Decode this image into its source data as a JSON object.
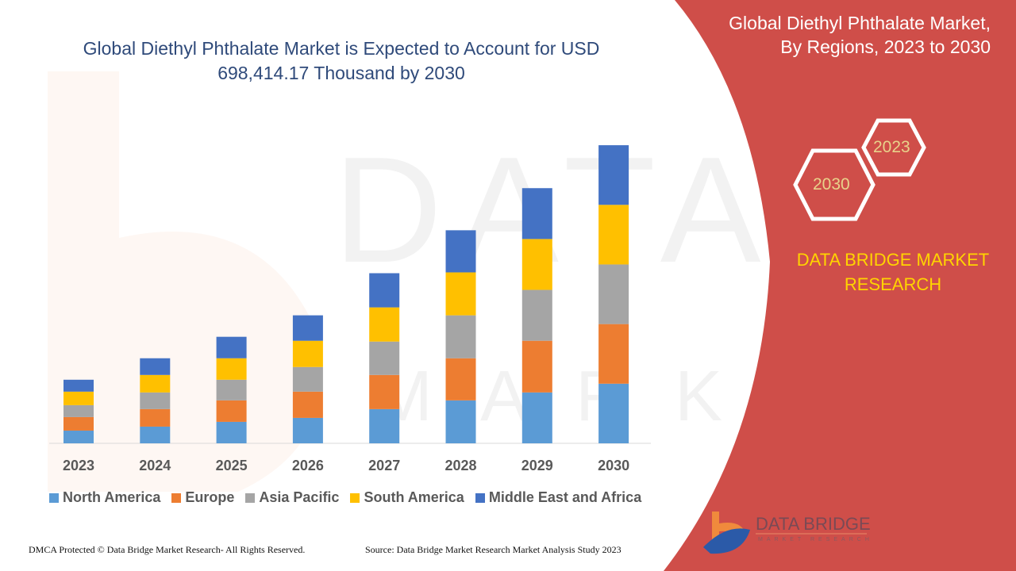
{
  "title": "Global Diethyl Phthalate Market is Expected to Account for USD 698,414.17 Thousand by 2030",
  "side_panel": {
    "title": "Global Diethyl Phthalate Market, By Regions, 2023 to 2030",
    "hex_labels": [
      "2023",
      "2030"
    ],
    "brand": "DATA BRIDGE MARKET RESEARCH",
    "logo_text": "DATA BRIDGE",
    "logo_subtext": "MARKET RESEARCH"
  },
  "footer": {
    "left": "DMCA Protected © Data Bridge Market Research- All Rights Reserved.",
    "right": "Source: Data Bridge Market Research Market Analysis Study 2023"
  },
  "colors": {
    "panel": "#cf4e49",
    "title": "#2f4a7a",
    "brand": "#ffd400"
  },
  "chart_data": {
    "type": "bar",
    "stacked": true,
    "title": "Global Diethyl Phthalate Market is Expected to Account for USD 698,414.17 Thousand by 2030",
    "xlabel": "",
    "ylabel": "",
    "ylim": [
      0,
      760
    ],
    "grid": false,
    "y_axis_visible": false,
    "legend_position": "bottom",
    "categories": [
      "2023",
      "2024",
      "2025",
      "2026",
      "2027",
      "2028",
      "2029",
      "2030"
    ],
    "series": [
      {
        "name": "North America",
        "color": "#5b9bd5",
        "values": [
          29.8,
          39.1,
          50.3,
          59.6,
          80.1,
          100.6,
          119.2,
          139.7
        ]
      },
      {
        "name": "Europe",
        "color": "#ed7d31",
        "values": [
          31.7,
          41.0,
          50.3,
          61.5,
          80.1,
          98.7,
          121.1,
          139.7
        ]
      },
      {
        "name": "Asia Pacific",
        "color": "#a5a5a5",
        "values": [
          27.9,
          39.1,
          48.4,
          57.7,
          78.2,
          100.6,
          119.2,
          139.7
        ]
      },
      {
        "name": "South America",
        "color": "#ffc000",
        "values": [
          31.7,
          41.0,
          50.3,
          61.5,
          80.1,
          100.6,
          119.2,
          139.7
        ]
      },
      {
        "name": "Middle East and Africa",
        "color": "#4472c4",
        "values": [
          27.9,
          39.1,
          50.3,
          59.6,
          80.1,
          98.7,
          119.2,
          139.7
        ]
      }
    ]
  }
}
